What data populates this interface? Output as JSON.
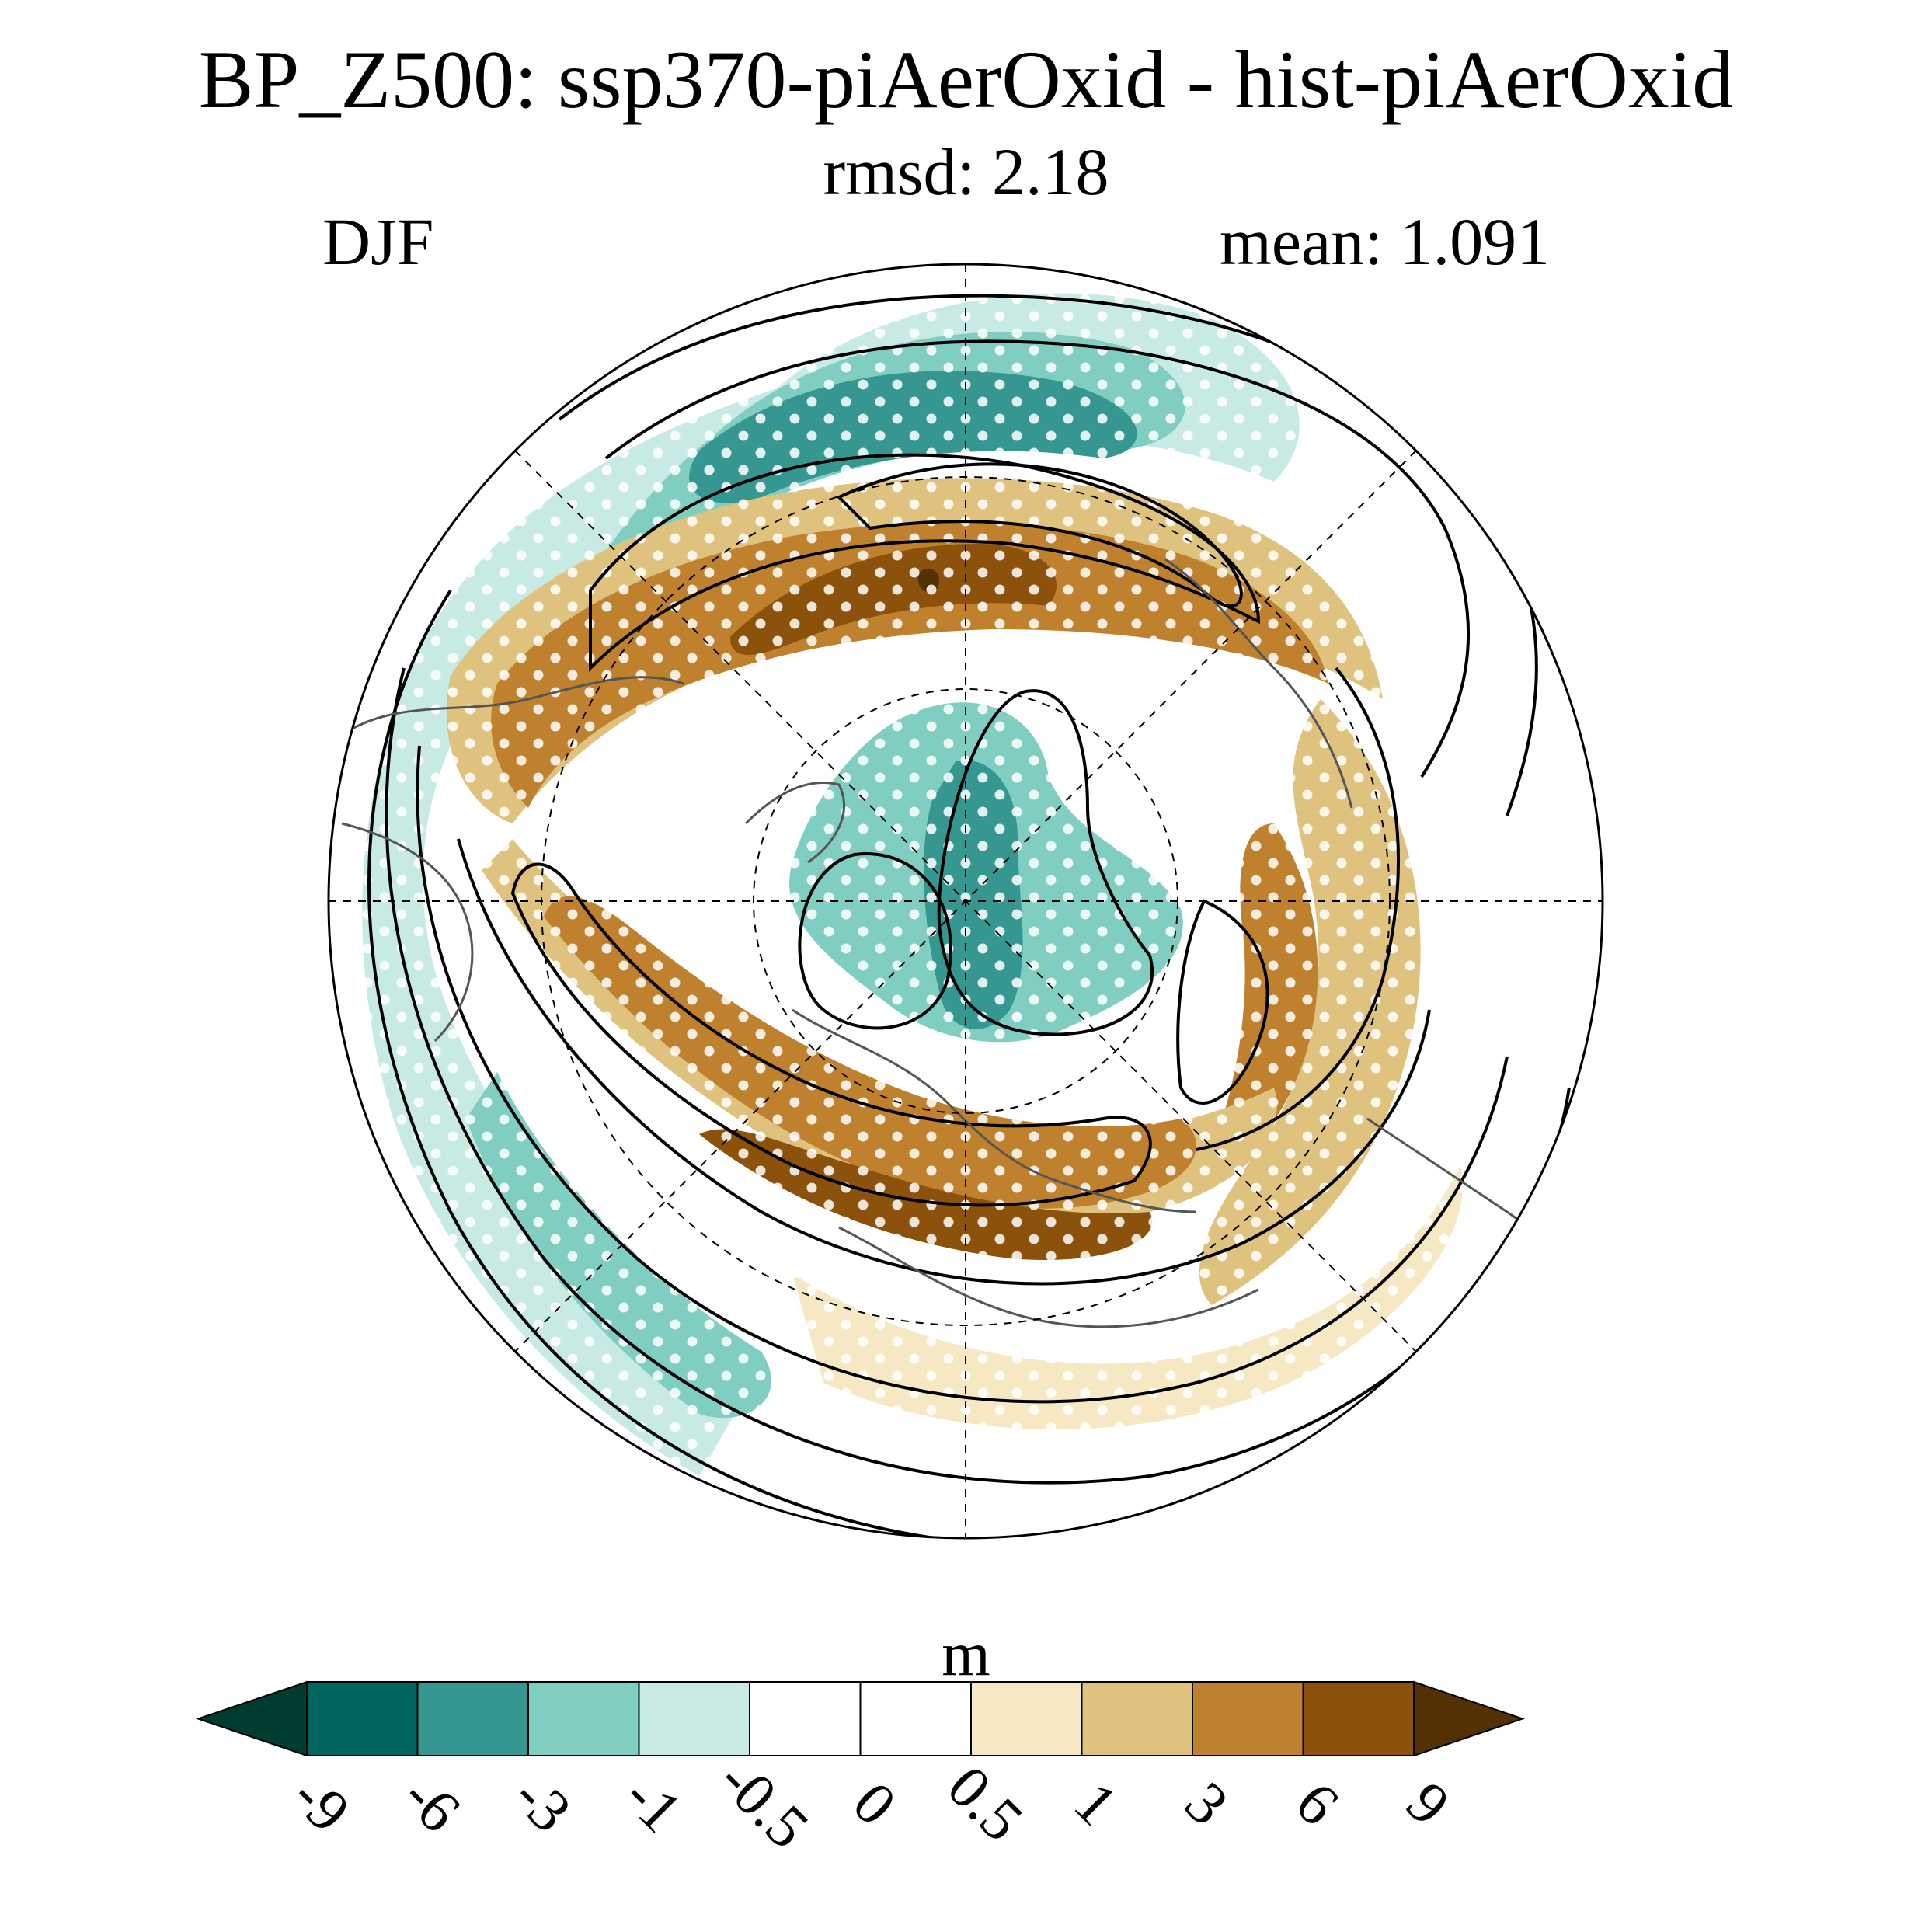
{
  "chart_data": {
    "type": "heatmap",
    "projection": "north polar stereographic",
    "title": "BP_Z500: ssp370-piAerOxid - hist-piAerOxid",
    "subtitle": "rmsd: 2.18",
    "left_label": "DJF",
    "right_label": "mean: 1.091",
    "colorbar": {
      "units": "m",
      "levels": [
        "-9",
        "-6",
        "-3",
        "-1",
        "-0.5",
        "0",
        "0.5",
        "1",
        "3",
        "6",
        "9"
      ],
      "colors": [
        "#003c30",
        "#01665e",
        "#35978f",
        "#80cdc1",
        "#c7eae5",
        "#ffffff",
        "#ffffff",
        "#f6e8c3",
        "#dfc27d",
        "#bf812d",
        "#8c510a",
        "#543005"
      ],
      "extend": "both"
    },
    "overlays": [
      "climatology contours (solid black)",
      "stippling (white dots) for significance",
      "coastlines",
      "lat/lon gridlines (dashed)"
    ]
  }
}
